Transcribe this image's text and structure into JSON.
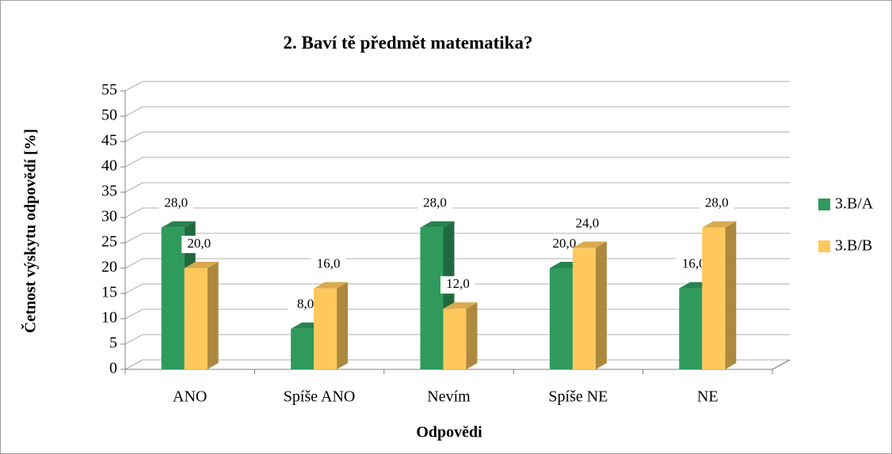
{
  "chart_data": {
    "type": "bar3d",
    "title": "2. Baví tě předmět matematika?",
    "x_label": "Odpovědi",
    "y_label": "Četnost výskytu odpovědí [%]",
    "categories": [
      "ANO",
      "Spíše ANO",
      "Nevím",
      "Spíše NE",
      "NE"
    ],
    "series": [
      {
        "name": "3.B/A",
        "color": "#2f9a5c",
        "values": [
          28,
          8,
          28,
          20,
          16
        ],
        "value_labels": [
          "28,0",
          "8,0",
          "28,0",
          "20,0",
          "16,0"
        ]
      },
      {
        "name": "3.B/B",
        "color": "#ffc85c",
        "values": [
          20,
          16,
          12,
          24,
          28
        ],
        "value_labels": [
          "20,0",
          "16,0",
          "12,0",
          "24,0",
          "28,0"
        ]
      }
    ],
    "ylim": [
      0,
      55
    ],
    "yticks": [
      0,
      5,
      10,
      15,
      20,
      25,
      30,
      35,
      40,
      45,
      50,
      55
    ],
    "grid": true,
    "legend": "right"
  }
}
